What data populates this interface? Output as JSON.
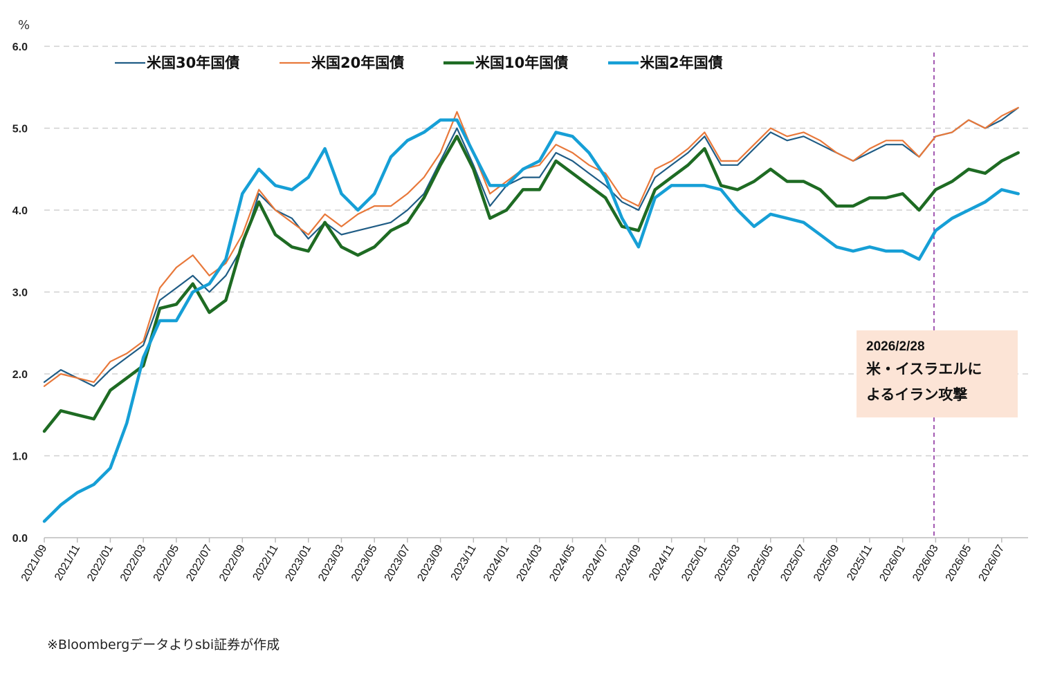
{
  "chart_data": {
    "type": "line",
    "unit_label": "%",
    "ylim": [
      0,
      6
    ],
    "yticks": [
      "0.0",
      "1.0",
      "2.0",
      "3.0",
      "4.0",
      "5.0",
      "6.0"
    ],
    "x_range": [
      "2021-09",
      "2026-08"
    ],
    "xticks": [
      "2021/09",
      "2021/11",
      "2022/01",
      "2022/03",
      "2022/05",
      "2022/07",
      "2022/09",
      "2022/11",
      "2023/01",
      "2023/03",
      "2023/05",
      "2023/07",
      "2023/09",
      "2023/11",
      "2024/01",
      "2024/03",
      "2024/05",
      "2024/07",
      "2024/09",
      "2024/11",
      "2025/01",
      "2025/03",
      "2025/05",
      "2025/07",
      "2025/09",
      "2025/11",
      "2026/01",
      "2026/03",
      "2026/05",
      "2026/07"
    ],
    "grid": "horizontal dashed",
    "legend_position": "top-left",
    "x_dates": [
      "2021-09",
      "2021-10",
      "2021-11",
      "2021-12",
      "2022-01",
      "2022-02",
      "2022-03",
      "2022-04",
      "2022-05",
      "2022-06",
      "2022-07",
      "2022-08",
      "2022-09",
      "2022-10",
      "2022-11",
      "2022-12",
      "2023-01",
      "2023-02",
      "2023-03",
      "2023-04",
      "2023-05",
      "2023-06",
      "2023-07",
      "2023-08",
      "2023-09",
      "2023-10",
      "2023-11",
      "2023-12",
      "2024-01",
      "2024-02",
      "2024-03",
      "2024-04",
      "2024-05",
      "2024-06",
      "2024-07",
      "2024-08",
      "2024-09",
      "2024-10",
      "2024-11",
      "2024-12",
      "2025-01",
      "2025-02",
      "2025-03",
      "2025-04",
      "2025-05",
      "2025-06",
      "2025-07",
      "2025-08",
      "2025-09",
      "2025-10",
      "2025-11",
      "2025-12",
      "2026-01",
      "2026-02",
      "2026-03",
      "2026-04",
      "2026-05",
      "2026-06",
      "2026-07",
      "2026-08"
    ],
    "series": [
      {
        "name": "米国30年国債",
        "color": "#1f5c85",
        "width": 2.2,
        "values": [
          1.9,
          2.05,
          1.95,
          1.85,
          2.05,
          2.2,
          2.35,
          2.9,
          3.05,
          3.2,
          3.0,
          3.2,
          3.55,
          4.2,
          4.0,
          3.9,
          3.65,
          3.85,
          3.7,
          3.75,
          3.8,
          3.85,
          4.0,
          4.2,
          4.6,
          5.0,
          4.55,
          4.05,
          4.3,
          4.4,
          4.4,
          4.7,
          4.6,
          4.45,
          4.3,
          4.1,
          4.0,
          4.4,
          4.55,
          4.7,
          4.9,
          4.55,
          4.55,
          4.75,
          4.95,
          4.85,
          4.9,
          4.8,
          4.7,
          4.6,
          4.7,
          4.8,
          4.8,
          4.65,
          4.9,
          4.95,
          5.1,
          5.0,
          5.1,
          5.25
        ]
      },
      {
        "name": "米国20年国債",
        "color": "#e8783a",
        "width": 2.2,
        "values": [
          1.85,
          2.0,
          1.95,
          1.9,
          2.15,
          2.25,
          2.4,
          3.05,
          3.3,
          3.45,
          3.2,
          3.35,
          3.7,
          4.25,
          4.0,
          3.85,
          3.7,
          3.95,
          3.8,
          3.95,
          4.05,
          4.05,
          4.2,
          4.4,
          4.7,
          5.2,
          4.7,
          4.2,
          4.35,
          4.5,
          4.55,
          4.8,
          4.7,
          4.55,
          4.45,
          4.15,
          4.05,
          4.5,
          4.6,
          4.75,
          4.95,
          4.6,
          4.6,
          4.8,
          5.0,
          4.9,
          4.95,
          4.85,
          4.7,
          4.6,
          4.75,
          4.85,
          4.85,
          4.65,
          4.9,
          4.95,
          5.1,
          5.0,
          5.15,
          5.25
        ]
      },
      {
        "name": "米国10年国債",
        "color": "#1e6b23",
        "width": 4.5,
        "values": [
          1.3,
          1.55,
          1.5,
          1.45,
          1.8,
          1.95,
          2.1,
          2.8,
          2.85,
          3.1,
          2.75,
          2.9,
          3.6,
          4.1,
          3.7,
          3.55,
          3.5,
          3.85,
          3.55,
          3.45,
          3.55,
          3.75,
          3.85,
          4.15,
          4.55,
          4.9,
          4.5,
          3.9,
          4.0,
          4.25,
          4.25,
          4.6,
          4.45,
          4.3,
          4.15,
          3.8,
          3.75,
          4.25,
          4.4,
          4.55,
          4.75,
          4.3,
          4.25,
          4.35,
          4.5,
          4.35,
          4.35,
          4.25,
          4.05,
          4.05,
          4.15,
          4.15,
          4.2,
          4.0,
          4.25,
          4.35,
          4.5,
          4.45,
          4.6,
          4.7
        ]
      },
      {
        "name": "米国2年国債",
        "color": "#169fd6",
        "width": 4.5,
        "values": [
          0.2,
          0.4,
          0.55,
          0.65,
          0.85,
          1.4,
          2.2,
          2.65,
          2.65,
          3.0,
          3.1,
          3.4,
          4.2,
          4.5,
          4.3,
          4.25,
          4.4,
          4.75,
          4.2,
          4.0,
          4.2,
          4.65,
          4.85,
          4.95,
          5.1,
          5.1,
          4.7,
          4.3,
          4.3,
          4.5,
          4.6,
          4.95,
          4.9,
          4.7,
          4.4,
          3.9,
          3.55,
          4.15,
          4.3,
          4.3,
          4.3,
          4.25,
          4.0,
          3.8,
          3.95,
          3.9,
          3.85,
          3.7,
          3.55,
          3.5,
          3.55,
          3.5,
          3.5,
          3.4,
          3.75,
          3.9,
          4.0,
          4.1,
          4.25,
          4.2
        ]
      }
    ],
    "event_marker": {
      "x": "2026-02-28",
      "color": "#8c2f9e",
      "style": "dashed"
    },
    "annotation": {
      "date": "2026/2/28",
      "line1": "米・イスラエルに",
      "line2": "よるイラン攻撃"
    }
  },
  "source_note": "※Bloombergデータよりsbi証券が作成"
}
